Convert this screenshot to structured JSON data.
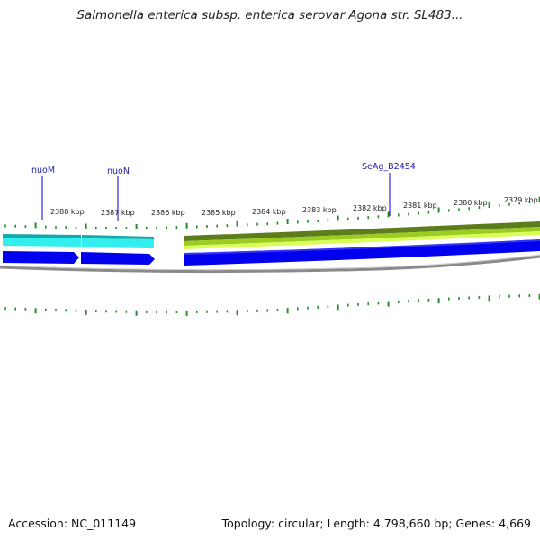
{
  "title": "Salmonella enterica subsp. enterica serovar Agona str. SL483...",
  "footer": {
    "accession": "Accession: NC_011149",
    "summary": "Topology: circular; Length: 4,798,660 bp; Genes: 4,669"
  },
  "ticks": [
    "2388 kbp",
    "2387 kbp",
    "2386 kbp",
    "2385 kbp",
    "2384 kbp",
    "2383 kbp",
    "2382 kbp",
    "2381 kbp",
    "2380 kbp",
    "2379 kbp"
  ],
  "genes": [
    {
      "name": "nuoM",
      "color": "#0000ee"
    },
    {
      "name": "nuoN",
      "color": "#0000ee"
    },
    {
      "name": "SeAg_B2454",
      "color": "#0000ee"
    }
  ],
  "colors": {
    "cds": "#0000ee",
    "cyan_track": "#22e8e8",
    "green_track_dark": "#5a7a1a",
    "green_track_light": "#c8ff40",
    "backbone": "#888888",
    "tick": "#2a8a2a"
  }
}
